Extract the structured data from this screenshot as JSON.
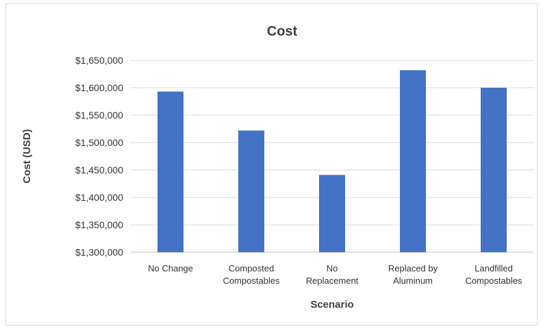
{
  "chart_data": {
    "type": "bar",
    "title": "Cost",
    "xlabel": "Scenario",
    "ylabel": "Cost (USD)",
    "categories": [
      [
        "No Change"
      ],
      [
        "Composted",
        "Compostables"
      ],
      [
        "No",
        "Replacement"
      ],
      [
        "Replaced by",
        "Aluminum"
      ],
      [
        "Landfilled",
        "Compostables"
      ]
    ],
    "values": [
      1593000,
      1522000,
      1441000,
      1632000,
      1600000
    ],
    "ylim": [
      1300000,
      1650000
    ],
    "yticks": [
      "$1,300,000",
      "$1,350,000",
      "$1,400,000",
      "$1,450,000",
      "$1,500,000",
      "$1,550,000",
      "$1,600,000",
      "$1,650,000"
    ],
    "bar_color": "#4472C4",
    "grid": true,
    "legend": "none"
  }
}
